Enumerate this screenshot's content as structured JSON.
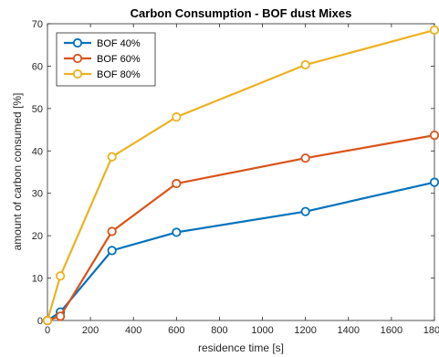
{
  "chart_data": {
    "type": "line",
    "title": "Carbon Consumption - BOF dust Mixes",
    "xlabel": "residence time [s]",
    "ylabel": "amount of carbon consumed [%]",
    "xlim": [
      0,
      1800
    ],
    "ylim": [
      0,
      70
    ],
    "xticks": [
      0,
      200,
      400,
      600,
      800,
      1000,
      1200,
      1400,
      1600,
      1800
    ],
    "yticks": [
      0,
      10,
      20,
      30,
      40,
      50,
      60,
      70
    ],
    "grid": false,
    "legend_position": "top-left",
    "x": [
      0,
      60,
      300,
      600,
      1200,
      1800
    ],
    "series": [
      {
        "name": "BOF 40%",
        "color": "#0072BD",
        "values": [
          0,
          2.0,
          16.5,
          20.8,
          25.7,
          32.6
        ]
      },
      {
        "name": "BOF 60%",
        "color": "#D95319",
        "values": [
          0,
          1.0,
          21.0,
          32.3,
          38.3,
          43.7
        ]
      },
      {
        "name": "BOF 80%",
        "color": "#EDB120",
        "values": [
          0,
          10.5,
          38.6,
          48.0,
          60.3,
          68.5
        ]
      }
    ]
  }
}
